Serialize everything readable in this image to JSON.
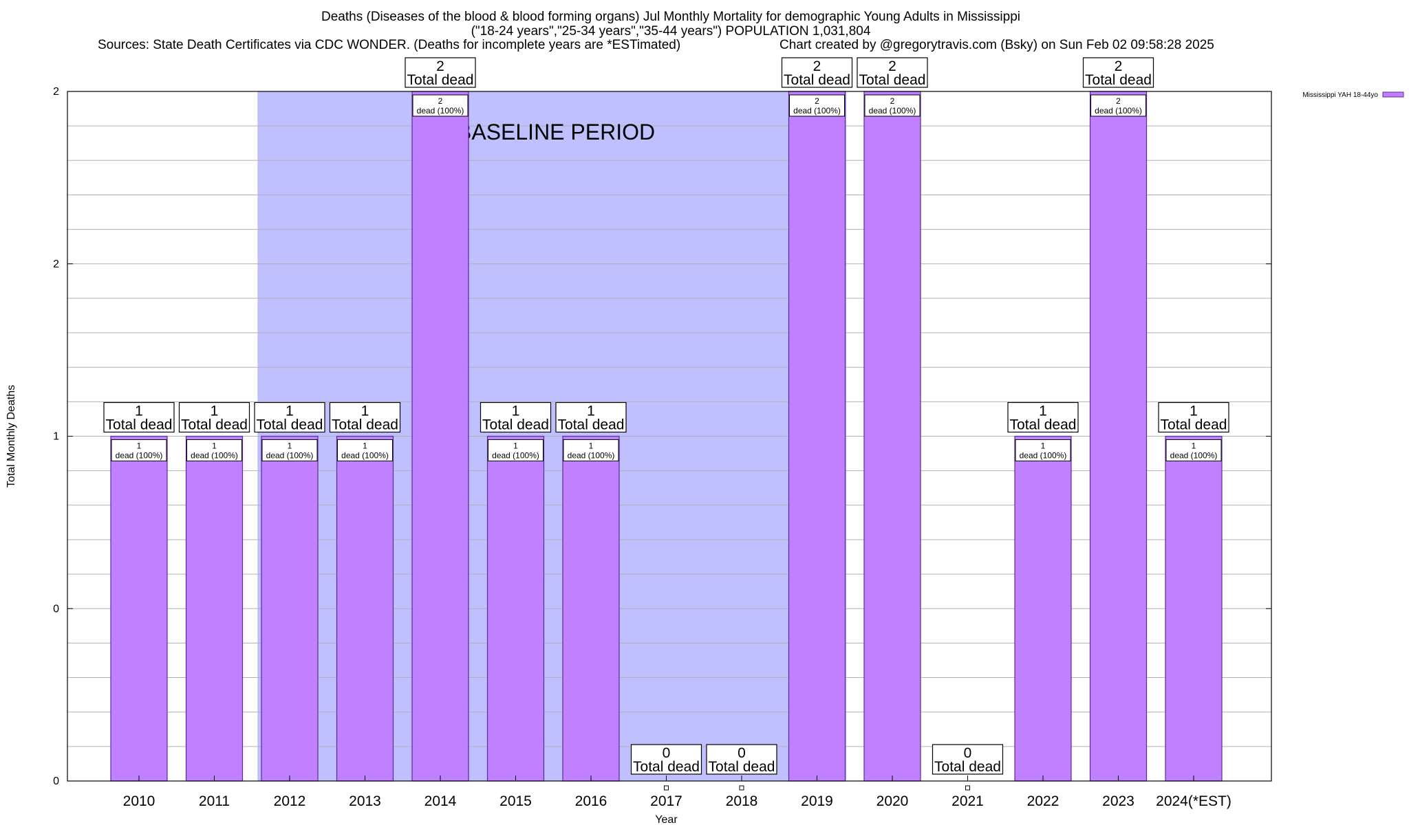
{
  "header": {
    "title": "Deaths (Diseases of the blood & blood forming organs) Jul Monthly Mortality for demographic Young Adults in Mississippi",
    "subtitle": "(\"18-24 years\",\"25-34 years\",\"35-44 years\") POPULATION 1,031,804",
    "sources": "Sources: State Death Certificates via CDC WONDER. (Deaths for incomplete years are *ESTimated)",
    "credit": "Chart created by @gregorytravis.com (Bsky) on Sun Feb 02 09:58:28 2025"
  },
  "chart_data": {
    "type": "bar",
    "title": "Deaths (Diseases of the blood & blood forming organs) Jul Monthly Mortality for demographic Young Adults in Mississippi",
    "xlabel": "Year",
    "ylabel": "Total Monthly Deaths",
    "categories": [
      "2010",
      "2011",
      "2012",
      "2013",
      "2014",
      "2015",
      "2016",
      "2017",
      "2018",
      "2019",
      "2020",
      "2021",
      "2022",
      "2023",
      "2024(*EST)"
    ],
    "series": [
      {
        "name": "Mississippi YAH 18-44yo",
        "values": [
          1,
          1,
          1,
          1,
          2,
          1,
          1,
          0,
          0,
          2,
          2,
          0,
          1,
          2,
          1
        ]
      }
    ],
    "ylim": [
      0,
      2
    ],
    "ytick_labels": [
      "0",
      "0",
      "1",
      "2",
      "2"
    ],
    "total_label_suffix": "Total dead",
    "bar_label_suffix": "dead (100%)",
    "baseline": {
      "label": "BASELINE PERIOD",
      "from_category": "2012",
      "to_category": "2019"
    },
    "legend_position": "top-right",
    "grid": true,
    "colors": {
      "bar": "#c080ff",
      "bar_edge": "#5a2a9a",
      "baseline_shade": "#c0c0ff",
      "legend_swatch": "#c080ff"
    }
  }
}
